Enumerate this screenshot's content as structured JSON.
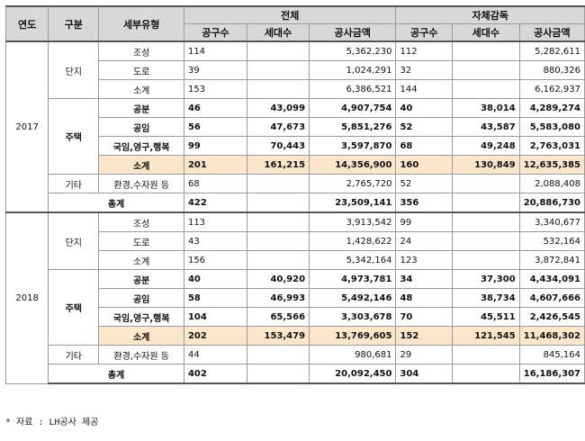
{
  "headers": {
    "year": "연도",
    "category": "구분",
    "detail_type": "세부유형",
    "total_group": "전체",
    "self_group": "자체감독",
    "projects": "공구수",
    "households": "세대수",
    "amount": "공사금액"
  },
  "years": [
    {
      "year": "2017",
      "danji": {
        "label": "단지",
        "rows": [
          {
            "type": "조성",
            "t_proj": "114",
            "t_hh": "",
            "t_amt": "5,362,230",
            "s_proj": "112",
            "s_hh": "",
            "s_amt": "5,282,611"
          },
          {
            "type": "도로",
            "t_proj": "39",
            "t_hh": "",
            "t_amt": "1,024,291",
            "s_proj": "32",
            "s_hh": "",
            "s_amt": "880,326"
          },
          {
            "type": "소계",
            "t_proj": "153",
            "t_hh": "",
            "t_amt": "6,386,521",
            "s_proj": "144",
            "s_hh": "",
            "s_amt": "6,162,937"
          }
        ]
      },
      "housing": {
        "label": "주택",
        "rows": [
          {
            "type": "공분",
            "t_proj": "46",
            "t_hh": "43,099",
            "t_amt": "4,907,754",
            "s_proj": "40",
            "s_hh": "38,014",
            "s_amt": "4,289,274"
          },
          {
            "type": "공임",
            "t_proj": "56",
            "t_hh": "47,673",
            "t_amt": "5,851,276",
            "s_proj": "52",
            "s_hh": "43,587",
            "s_amt": "5,583,080"
          },
          {
            "type": "국임,영구,행복",
            "t_proj": "99",
            "t_hh": "70,443",
            "t_amt": "3,597,870",
            "s_proj": "68",
            "s_hh": "49,248",
            "s_amt": "2,763,031"
          },
          {
            "type": "소계",
            "t_proj": "201",
            "t_hh": "161,215",
            "t_amt": "14,356,900",
            "s_proj": "160",
            "s_hh": "130,849",
            "s_amt": "12,635,385"
          }
        ]
      },
      "etc": {
        "label": "기타",
        "type": "환경,수자원 등",
        "t_proj": "68",
        "t_hh": "",
        "t_amt": "2,765,720",
        "s_proj": "52",
        "s_hh": "",
        "s_amt": "2,088,408"
      },
      "total": {
        "label": "총계",
        "t_proj": "422",
        "t_hh": "",
        "t_amt": "23,509,141",
        "s_proj": "356",
        "s_hh": "",
        "s_amt": "20,886,730"
      }
    },
    {
      "year": "2018",
      "danji": {
        "label": "단지",
        "rows": [
          {
            "type": "조성",
            "t_proj": "113",
            "t_hh": "",
            "t_amt": "3,913,542",
            "s_proj": "99",
            "s_hh": "",
            "s_amt": "3,340,677"
          },
          {
            "type": "도로",
            "t_proj": "43",
            "t_hh": "",
            "t_amt": "1,428,622",
            "s_proj": "24",
            "s_hh": "",
            "s_amt": "532,164"
          },
          {
            "type": "소계",
            "t_proj": "156",
            "t_hh": "",
            "t_amt": "5,342,164",
            "s_proj": "123",
            "s_hh": "",
            "s_amt": "3,872,841"
          }
        ]
      },
      "housing": {
        "label": "주택",
        "rows": [
          {
            "type": "공분",
            "t_proj": "40",
            "t_hh": "40,920",
            "t_amt": "4,973,781",
            "s_proj": "34",
            "s_hh": "37,300",
            "s_amt": "4,434,091"
          },
          {
            "type": "공임",
            "t_proj": "58",
            "t_hh": "46,993",
            "t_amt": "5,492,146",
            "s_proj": "48",
            "s_hh": "38,734",
            "s_amt": "4,607,666"
          },
          {
            "type": "국임,영구,행복",
            "t_proj": "104",
            "t_hh": "65,566",
            "t_amt": "3,303,678",
            "s_proj": "70",
            "s_hh": "45,511",
            "s_amt": "2,426,545"
          },
          {
            "type": "소계",
            "t_proj": "202",
            "t_hh": "153,479",
            "t_amt": "13,769,605",
            "s_proj": "152",
            "s_hh": "121,545",
            "s_amt": "11,468,302"
          }
        ]
      },
      "etc": {
        "label": "기타",
        "type": "환경,수자원 등",
        "t_proj": "44",
        "t_hh": "",
        "t_amt": "980,681",
        "s_proj": "29",
        "s_hh": "",
        "s_amt": "845,164"
      },
      "total": {
        "label": "총계",
        "t_proj": "402",
        "t_hh": "",
        "t_amt": "20,092,450",
        "s_proj": "304",
        "s_hh": "",
        "s_amt": "16,186,307"
      }
    }
  ],
  "note": "* 자료 : LH공사 제공",
  "colors": {
    "header_bg": "#d8d8d8",
    "subtotal_bg": "#fbe6cc",
    "border": "#9a9a9a"
  }
}
